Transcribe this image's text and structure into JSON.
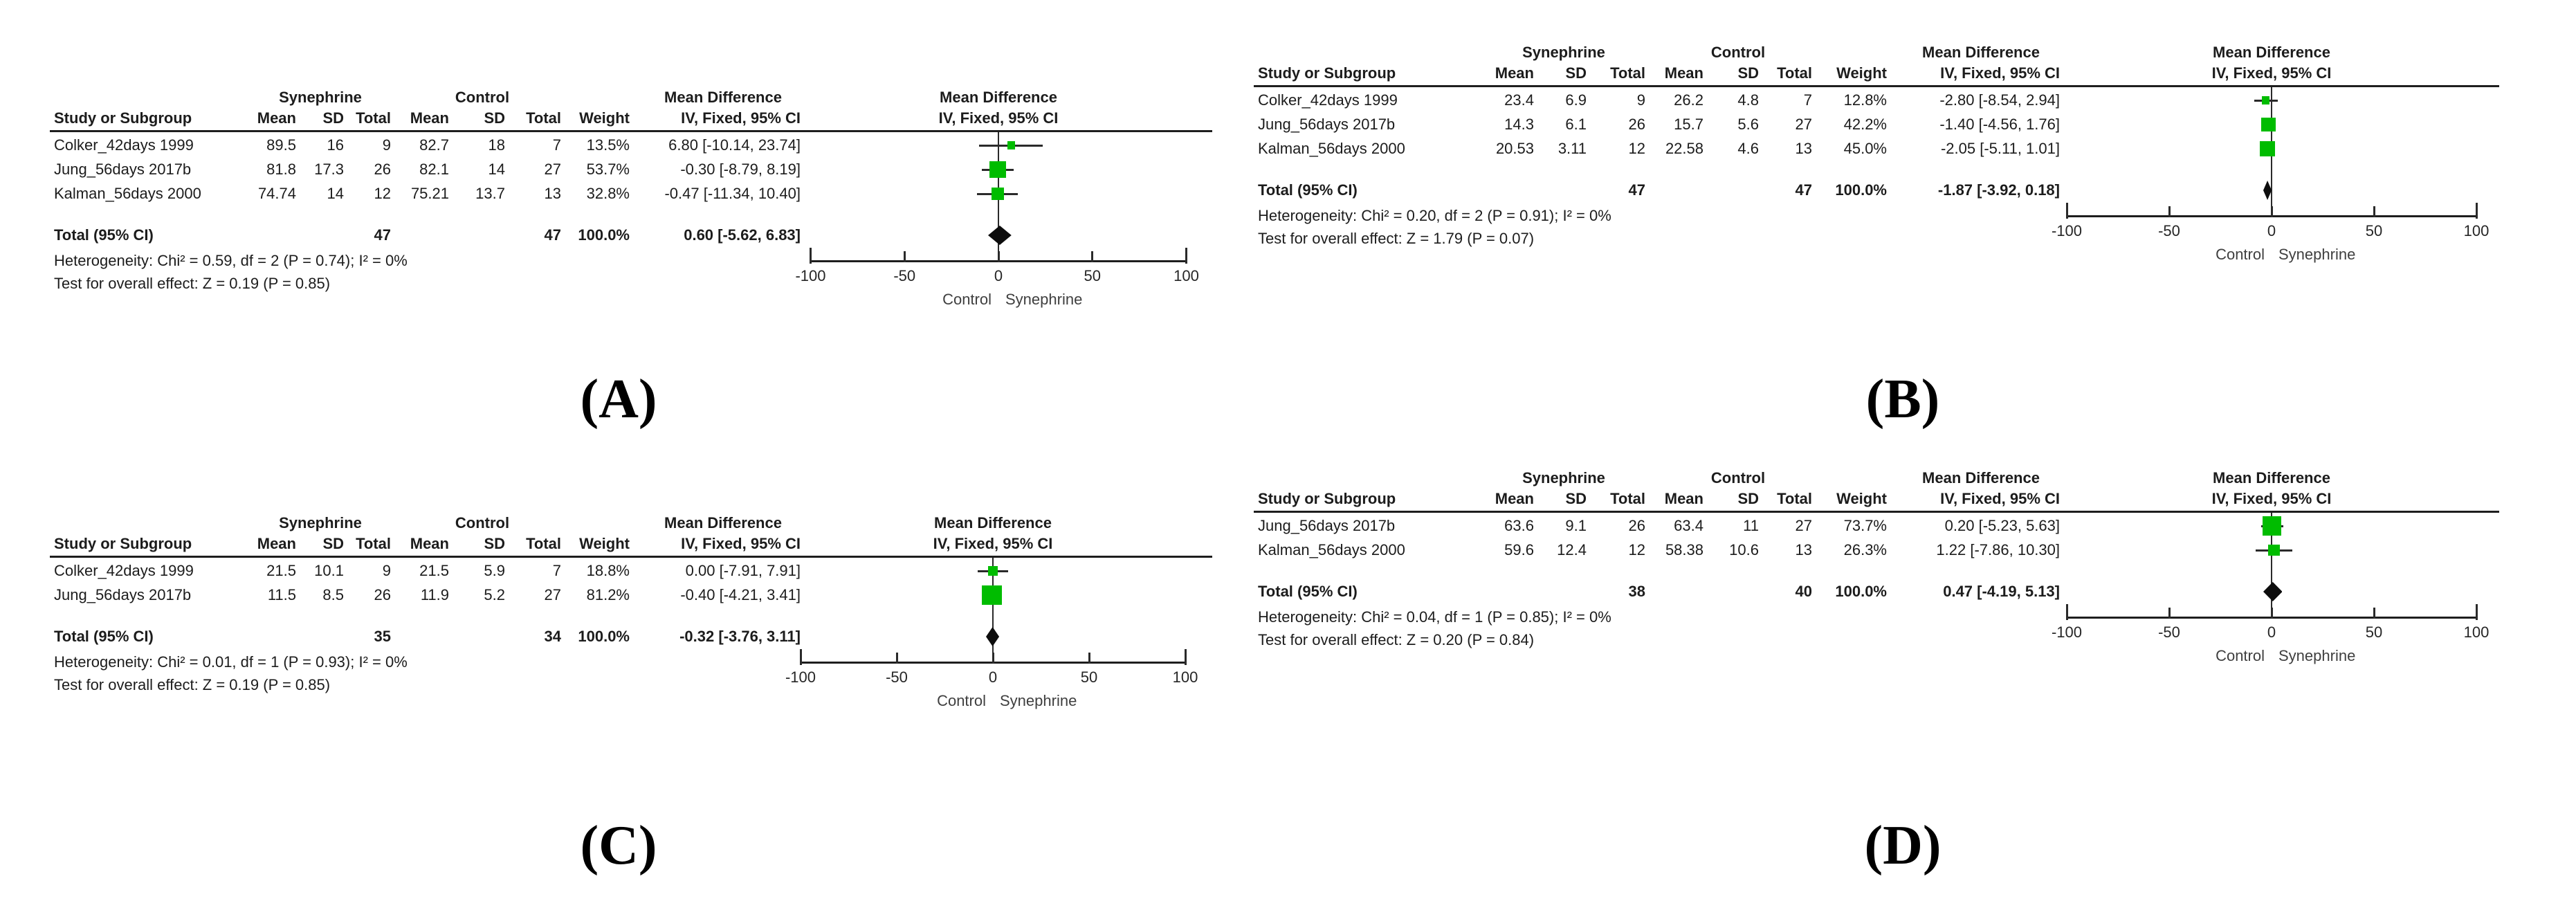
{
  "figure": {
    "background_color": "#ffffff",
    "text_color": "#1c1c1c",
    "marker_green": "#00bc00",
    "diamond_black": "#0d0d0d"
  },
  "chart_data": [
    {
      "type": "forest",
      "panel_label": "(A)",
      "group_headers": {
        "experimental": "Synephrine",
        "control": "Control",
        "effect": "Mean Difference"
      },
      "column_headers": {
        "study": "Study or Subgroup",
        "mean": "Mean",
        "sd": "SD",
        "total": "Total",
        "weight": "Weight",
        "effect_ci": "IV, Fixed, 95% CI"
      },
      "plot_title": [
        "Mean Difference",
        "IV, Fixed, 95% CI"
      ],
      "studies": [
        {
          "name": "Colker_42days 1999",
          "syn_mean": "89.5",
          "syn_sd": "16",
          "syn_total": "9",
          "ctl_mean": "82.7",
          "ctl_sd": "18",
          "ctl_total": "7",
          "weight": "13.5%",
          "effect_ci_text": "6.80 [-10.14, 23.74]",
          "md": 6.8,
          "ci_low": -10.14,
          "ci_high": 23.74,
          "weight_value": 13.5
        },
        {
          "name": "Jung_56days 2017b",
          "syn_mean": "81.8",
          "syn_sd": "17.3",
          "syn_total": "26",
          "ctl_mean": "82.1",
          "ctl_sd": "14",
          "ctl_total": "27",
          "weight": "53.7%",
          "effect_ci_text": "-0.30 [-8.79, 8.19]",
          "md": -0.3,
          "ci_low": -8.79,
          "ci_high": 8.19,
          "weight_value": 53.7
        },
        {
          "name": "Kalman_56days 2000",
          "syn_mean": "74.74",
          "syn_sd": "14",
          "syn_total": "12",
          "ctl_mean": "75.21",
          "ctl_sd": "13.7",
          "ctl_total": "13",
          "weight": "32.8%",
          "effect_ci_text": "-0.47 [-11.34, 10.40]",
          "md": -0.47,
          "ci_low": -11.34,
          "ci_high": 10.4,
          "weight_value": 32.8
        }
      ],
      "total": {
        "label": "Total (95% CI)",
        "syn_total": "47",
        "ctl_total": "47",
        "weight": "100.0%",
        "effect_ci_text": "0.60 [-5.62, 6.83]",
        "md": 0.6,
        "ci_low": -5.62,
        "ci_high": 6.83
      },
      "footnotes": {
        "heterogeneity": "Heterogeneity: Chi² = 0.59, df = 2 (P = 0.74); I² = 0%",
        "overall_effect": "Test for overall effect: Z = 0.19 (P = 0.85)"
      },
      "x_axis": {
        "min": -100,
        "max": 100,
        "ticks": [
          -100,
          -50,
          0,
          50,
          100
        ],
        "label_left": "Control",
        "label_right": "Synephrine"
      }
    },
    {
      "type": "forest",
      "panel_label": "(B)",
      "group_headers": {
        "experimental": "Synephrine",
        "control": "Control",
        "effect": "Mean Difference"
      },
      "column_headers": {
        "study": "Study or Subgroup",
        "mean": "Mean",
        "sd": "SD",
        "total": "Total",
        "weight": "Weight",
        "effect_ci": "IV, Fixed, 95% CI"
      },
      "plot_title": [
        "Mean Difference",
        "IV, Fixed, 95% CI"
      ],
      "studies": [
        {
          "name": "Colker_42days 1999",
          "syn_mean": "23.4",
          "syn_sd": "6.9",
          "syn_total": "9",
          "ctl_mean": "26.2",
          "ctl_sd": "4.8",
          "ctl_total": "7",
          "weight": "12.8%",
          "effect_ci_text": "-2.80 [-8.54, 2.94]",
          "md": -2.8,
          "ci_low": -8.54,
          "ci_high": 2.94,
          "weight_value": 12.8
        },
        {
          "name": "Jung_56days 2017b",
          "syn_mean": "14.3",
          "syn_sd": "6.1",
          "syn_total": "26",
          "ctl_mean": "15.7",
          "ctl_sd": "5.6",
          "ctl_total": "27",
          "weight": "42.2%",
          "effect_ci_text": "-1.40 [-4.56, 1.76]",
          "md": -1.4,
          "ci_low": -4.56,
          "ci_high": 1.76,
          "weight_value": 42.2
        },
        {
          "name": "Kalman_56days 2000",
          "syn_mean": "20.53",
          "syn_sd": "3.11",
          "syn_total": "12",
          "ctl_mean": "22.58",
          "ctl_sd": "4.6",
          "ctl_total": "13",
          "weight": "45.0%",
          "effect_ci_text": "-2.05 [-5.11, 1.01]",
          "md": -2.05,
          "ci_low": -5.11,
          "ci_high": 1.01,
          "weight_value": 45.0
        }
      ],
      "total": {
        "label": "Total (95% CI)",
        "syn_total": "47",
        "ctl_total": "47",
        "weight": "100.0%",
        "effect_ci_text": "-1.87 [-3.92, 0.18]",
        "md": -1.87,
        "ci_low": -3.92,
        "ci_high": 0.18
      },
      "footnotes": {
        "heterogeneity": "Heterogeneity: Chi² = 0.20, df = 2 (P = 0.91); I² = 0%",
        "overall_effect": "Test for overall effect: Z = 1.79 (P = 0.07)"
      },
      "x_axis": {
        "min": -100,
        "max": 100,
        "ticks": [
          -100,
          -50,
          0,
          50,
          100
        ],
        "label_left": "Control",
        "label_right": "Synephrine"
      }
    },
    {
      "type": "forest",
      "panel_label": "(C)",
      "group_headers": {
        "experimental": "Synephrine",
        "control": "Control",
        "effect": "Mean Difference"
      },
      "column_headers": {
        "study": "Study or Subgroup",
        "mean": "Mean",
        "sd": "SD",
        "total": "Total",
        "weight": "Weight",
        "effect_ci": "IV, Fixed, 95% CI"
      },
      "plot_title": [
        "Mean Difference",
        "IV, Fixed, 95% CI"
      ],
      "studies": [
        {
          "name": "Colker_42days 1999",
          "syn_mean": "21.5",
          "syn_sd": "10.1",
          "syn_total": "9",
          "ctl_mean": "21.5",
          "ctl_sd": "5.9",
          "ctl_total": "7",
          "weight": "18.8%",
          "effect_ci_text": "0.00 [-7.91, 7.91]",
          "md": 0.0,
          "ci_low": -7.91,
          "ci_high": 7.91,
          "weight_value": 18.8
        },
        {
          "name": "Jung_56days 2017b",
          "syn_mean": "11.5",
          "syn_sd": "8.5",
          "syn_total": "26",
          "ctl_mean": "11.9",
          "ctl_sd": "5.2",
          "ctl_total": "27",
          "weight": "81.2%",
          "effect_ci_text": "-0.40 [-4.21, 3.41]",
          "md": -0.4,
          "ci_low": -4.21,
          "ci_high": 3.41,
          "weight_value": 81.2
        }
      ],
      "total": {
        "label": "Total (95% CI)",
        "syn_total": "35",
        "ctl_total": "34",
        "weight": "100.0%",
        "effect_ci_text": "-0.32 [-3.76, 3.11]",
        "md": -0.32,
        "ci_low": -3.76,
        "ci_high": 3.11
      },
      "footnotes": {
        "heterogeneity": "Heterogeneity: Chi² = 0.01, df = 1 (P = 0.93); I² = 0%",
        "overall_effect": "Test for overall effect: Z = 0.19 (P = 0.85)"
      },
      "x_axis": {
        "min": -100,
        "max": 100,
        "ticks": [
          -100,
          -50,
          0,
          50,
          100
        ],
        "label_left": "Control",
        "label_right": "Synephrine"
      }
    },
    {
      "type": "forest",
      "panel_label": "(D)",
      "group_headers": {
        "experimental": "Synephrine",
        "control": "Control",
        "effect": "Mean Difference"
      },
      "column_headers": {
        "study": "Study or Subgroup",
        "mean": "Mean",
        "sd": "SD",
        "total": "Total",
        "weight": "Weight",
        "effect_ci": "IV, Fixed, 95% CI"
      },
      "plot_title": [
        "Mean Difference",
        "IV, Fixed, 95% CI"
      ],
      "studies": [
        {
          "name": "Jung_56days 2017b",
          "syn_mean": "63.6",
          "syn_sd": "9.1",
          "syn_total": "26",
          "ctl_mean": "63.4",
          "ctl_sd": "11",
          "ctl_total": "27",
          "weight": "73.7%",
          "effect_ci_text": "0.20 [-5.23, 5.63]",
          "md": 0.2,
          "ci_low": -5.23,
          "ci_high": 5.63,
          "weight_value": 73.7
        },
        {
          "name": "Kalman_56days 2000",
          "syn_mean": "59.6",
          "syn_sd": "12.4",
          "syn_total": "12",
          "ctl_mean": "58.38",
          "ctl_sd": "10.6",
          "ctl_total": "13",
          "weight": "26.3%",
          "effect_ci_text": "1.22 [-7.86, 10.30]",
          "md": 1.22,
          "ci_low": -7.86,
          "ci_high": 10.3,
          "weight_value": 26.3
        }
      ],
      "total": {
        "label": "Total (95% CI)",
        "syn_total": "38",
        "ctl_total": "40",
        "weight": "100.0%",
        "effect_ci_text": "0.47 [-4.19, 5.13]",
        "md": 0.47,
        "ci_low": -4.19,
        "ci_high": 5.13
      },
      "footnotes": {
        "heterogeneity": "Heterogeneity: Chi² = 0.04, df = 1 (P = 0.85); I² = 0%",
        "overall_effect": "Test for overall effect: Z = 0.20 (P = 0.84)"
      },
      "x_axis": {
        "min": -100,
        "max": 100,
        "ticks": [
          -100,
          -50,
          0,
          50,
          100
        ],
        "label_left": "Control",
        "label_right": "Synephrine"
      }
    }
  ]
}
